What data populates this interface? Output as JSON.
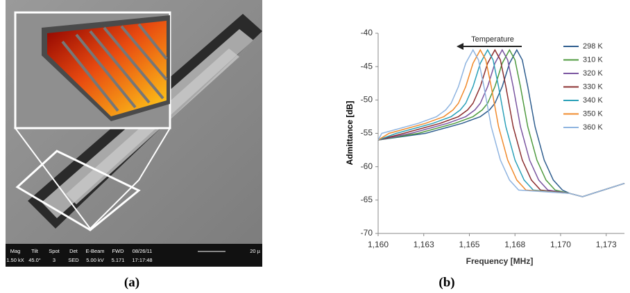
{
  "panel_labels": [
    "(a)",
    "(b)"
  ],
  "sem_info": [
    {
      "label": "Mag",
      "value": "1.50 kX"
    },
    {
      "label": "Tilt",
      "value": "45.0°"
    },
    {
      "label": "Spot",
      "value": "3"
    },
    {
      "label": "Det",
      "value": "SED"
    },
    {
      "label": "E-Beam",
      "value": "5.00 kV"
    },
    {
      "label": "FWD",
      "value": "5.171"
    },
    {
      "label": "08/26/11",
      "value": "17:17:48"
    }
  ],
  "sem_scale": "20 µ",
  "chart_data": {
    "type": "line",
    "annotation": "Temperature",
    "xlabel": "Frequency [MHz]",
    "ylabel": "Admittance [dB]",
    "xlim": [
      1160,
      1173.5
    ],
    "ylim": [
      -70,
      -40
    ],
    "xticks": [
      {
        "value": 1160,
        "label": "1,160"
      },
      {
        "value": 1162.5,
        "label": "1,163"
      },
      {
        "value": 1165,
        "label": "1,165"
      },
      {
        "value": 1167.5,
        "label": "1,168"
      },
      {
        "value": 1170,
        "label": "1,170"
      },
      {
        "value": 1172.5,
        "label": "1,173"
      }
    ],
    "yticks": [
      -70,
      -65,
      -60,
      -55,
      -50,
      -45,
      -40
    ],
    "grid": false,
    "legend": "upper right",
    "series": [
      {
        "name": "298 K",
        "color": "#2e5d8e",
        "x": [
          1160,
          1162.6,
          1164.6,
          1165.6,
          1166.1,
          1166.4,
          1166.8,
          1167.2,
          1167.6,
          1167.9,
          1168.2,
          1168.6,
          1169.1,
          1169.6,
          1170.1,
          1170.5,
          1171.2,
          1172,
          1173.5
        ],
        "values": [
          -56,
          -55,
          -53.5,
          -52.5,
          -51.5,
          -50.5,
          -48,
          -44.5,
          -42.5,
          -44,
          -48,
          -54,
          -59,
          -62,
          -63.5,
          -64,
          -64.5,
          -63.8,
          -62.5
        ]
      },
      {
        "name": "310 K",
        "color": "#4e9a3e",
        "x": [
          1160,
          1162.2,
          1164.2,
          1165.2,
          1165.7,
          1166,
          1166.4,
          1166.8,
          1167.2,
          1167.5,
          1167.8,
          1168.2,
          1168.7,
          1169.2,
          1169.7,
          1170.5,
          1171.2,
          1172,
          1173.5
        ],
        "values": [
          -56,
          -55,
          -53.5,
          -52.5,
          -51.5,
          -50.5,
          -48,
          -44.5,
          -42.5,
          -44,
          -48,
          -54,
          -59,
          -62,
          -63.5,
          -64,
          -64.5,
          -63.8,
          -62.5
        ]
      },
      {
        "name": "320 K",
        "color": "#7a55a0",
        "x": [
          1160,
          1161.8,
          1163.8,
          1164.8,
          1165.3,
          1165.6,
          1166,
          1166.4,
          1166.8,
          1167.1,
          1167.4,
          1167.8,
          1168.3,
          1168.8,
          1169.3,
          1170.5,
          1171.2,
          1172,
          1173.5
        ],
        "values": [
          -56,
          -55,
          -53.5,
          -52.5,
          -51.5,
          -50.5,
          -48,
          -44.5,
          -42.5,
          -44,
          -48,
          -54,
          -59,
          -62,
          -63.5,
          -64,
          -64.5,
          -63.8,
          -62.5
        ]
      },
      {
        "name": "330 K",
        "color": "#8b2e2e",
        "x": [
          1160,
          1161.4,
          1163.4,
          1164.4,
          1164.9,
          1165.2,
          1165.6,
          1166,
          1166.4,
          1166.7,
          1167,
          1167.4,
          1167.9,
          1168.4,
          1168.9,
          1170.5,
          1171.2,
          1172,
          1173.5
        ],
        "values": [
          -56,
          -55,
          -53.5,
          -52.5,
          -51.5,
          -50.5,
          -48,
          -44.5,
          -42.5,
          -44,
          -48,
          -54,
          -59,
          -62,
          -63.5,
          -64,
          -64.5,
          -63.8,
          -62.5
        ]
      },
      {
        "name": "340 K",
        "color": "#2aa0b8",
        "x": [
          1160,
          1161,
          1163,
          1164,
          1164.5,
          1164.8,
          1165.2,
          1165.6,
          1166,
          1166.3,
          1166.6,
          1167,
          1167.5,
          1168,
          1168.5,
          1170.5,
          1171.2,
          1172,
          1173.5
        ],
        "values": [
          -56,
          -55,
          -53.5,
          -52.5,
          -51.5,
          -50.5,
          -48,
          -44.5,
          -42.5,
          -44,
          -48,
          -54,
          -59,
          -62,
          -63.5,
          -64,
          -64.5,
          -63.8,
          -62.5
        ]
      },
      {
        "name": "350 K",
        "color": "#f0892a",
        "x": [
          1160,
          1160.6,
          1162.6,
          1163.6,
          1164.1,
          1164.4,
          1164.8,
          1165.2,
          1165.6,
          1165.9,
          1166.2,
          1166.6,
          1167.1,
          1167.6,
          1168.1,
          1170.5,
          1171.2,
          1172,
          1173.5
        ],
        "values": [
          -56,
          -55,
          -53.5,
          -52.5,
          -51.5,
          -50.5,
          -48,
          -44.5,
          -42.5,
          -44,
          -48,
          -54,
          -59,
          -62,
          -63.5,
          -64,
          -64.5,
          -63.8,
          -62.5
        ]
      },
      {
        "name": "360 K",
        "color": "#8fb4e0",
        "x": [
          1160,
          1160.2,
          1162.2,
          1163.2,
          1163.7,
          1164,
          1164.4,
          1164.8,
          1165.2,
          1165.5,
          1165.8,
          1166.2,
          1166.7,
          1167.2,
          1167.7,
          1170.5,
          1171.2,
          1172,
          1173.5
        ],
        "values": [
          -56,
          -55,
          -53.5,
          -52.5,
          -51.5,
          -50.5,
          -48,
          -44.5,
          -42.5,
          -44,
          -48,
          -54,
          -59,
          -62,
          -63.5,
          -64,
          -64.5,
          -63.8,
          -62.5
        ]
      }
    ]
  }
}
